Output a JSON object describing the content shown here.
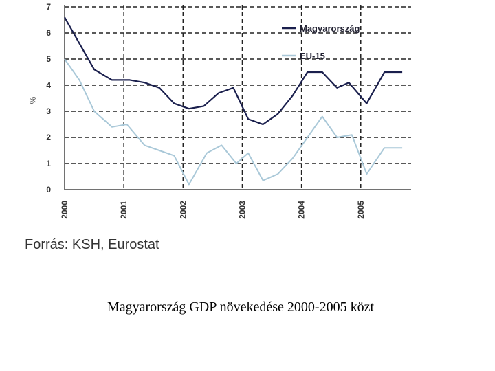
{
  "chart_data": {
    "type": "line",
    "xlabel": "",
    "ylabel": "%",
    "ylim": [
      0,
      7
    ],
    "xlim": [
      2000,
      2005.85
    ],
    "y_ticks": [
      "0",
      "1",
      "2",
      "3",
      "4",
      "5",
      "6",
      "7"
    ],
    "x_ticks": [
      {
        "label": "2000",
        "x": 2000
      },
      {
        "label": "2001",
        "x": 2001
      },
      {
        "label": "2002",
        "x": 2002
      },
      {
        "label": "2003",
        "x": 2003
      },
      {
        "label": "2004",
        "x": 2004
      },
      {
        "label": "2005",
        "x": 2005
      }
    ],
    "grid": true,
    "legend_position": "top-right",
    "series": [
      {
        "name": "Magyarország",
        "color": "#1a1f4d",
        "points": [
          [
            2000,
            6.6
          ],
          [
            2000.25,
            5.6
          ],
          [
            2000.5,
            4.6
          ],
          [
            2000.8,
            4.2
          ],
          [
            2001.1,
            4.2
          ],
          [
            2001.35,
            4.1
          ],
          [
            2001.6,
            3.9
          ],
          [
            2001.85,
            3.3
          ],
          [
            2002.1,
            3.1
          ],
          [
            2002.35,
            3.2
          ],
          [
            2002.6,
            3.7
          ],
          [
            2002.85,
            3.9
          ],
          [
            2003.1,
            2.7
          ],
          [
            2003.35,
            2.5
          ],
          [
            2003.6,
            2.9
          ],
          [
            2003.85,
            3.6
          ],
          [
            2004.1,
            4.5
          ],
          [
            2004.35,
            4.5
          ],
          [
            2004.6,
            3.9
          ],
          [
            2004.8,
            4.1
          ],
          [
            2005.1,
            3.3
          ],
          [
            2005.4,
            4.5
          ],
          [
            2005.7,
            4.5
          ]
        ]
      },
      {
        "name": "EU-15",
        "color": "#a9c8d8",
        "points": [
          [
            2000,
            5.0
          ],
          [
            2000.25,
            4.2
          ],
          [
            2000.5,
            3.0
          ],
          [
            2000.8,
            2.4
          ],
          [
            2001.05,
            2.5
          ],
          [
            2001.35,
            1.7
          ],
          [
            2001.6,
            1.5
          ],
          [
            2001.85,
            1.3
          ],
          [
            2002.1,
            0.2
          ],
          [
            2002.4,
            1.4
          ],
          [
            2002.65,
            1.7
          ],
          [
            2002.9,
            1.0
          ],
          [
            2003.1,
            1.4
          ],
          [
            2003.35,
            0.35
          ],
          [
            2003.6,
            0.6
          ],
          [
            2003.85,
            1.2
          ],
          [
            2004.1,
            2.0
          ],
          [
            2004.35,
            2.8
          ],
          [
            2004.6,
            2.0
          ],
          [
            2004.85,
            2.1
          ],
          [
            2005.1,
            0.6
          ],
          [
            2005.4,
            1.6
          ],
          [
            2005.7,
            1.6
          ]
        ]
      }
    ]
  },
  "source_text": "Forrás: KSH, Eurostat",
  "caption": "Magyarország GDP növekedése 2000-2005 közt"
}
